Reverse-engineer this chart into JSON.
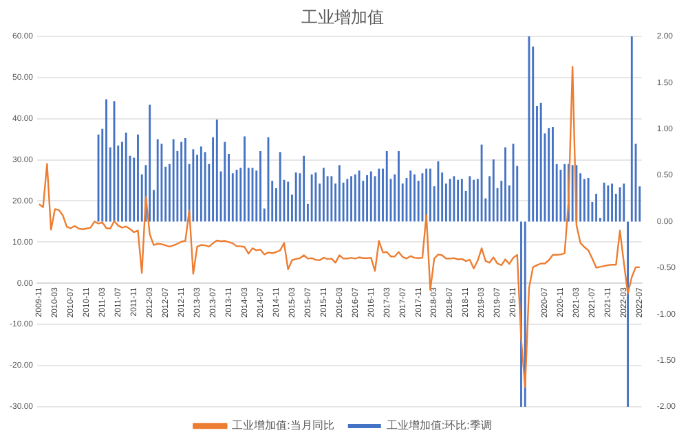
{
  "chart_data": {
    "type": "bar",
    "title": "工业增加值",
    "categories": [
      "2009-11",
      null,
      null,
      null,
      "2010-03",
      null,
      null,
      null,
      "2010-07",
      null,
      null,
      null,
      "2010-11",
      null,
      null,
      null,
      "2011-03",
      null,
      null,
      null,
      "2011-07",
      null,
      null,
      null,
      "2011-11",
      null,
      null,
      null,
      "2012-03",
      null,
      null,
      null,
      "2012-07",
      null,
      null,
      null,
      "2012-11",
      null,
      null,
      null,
      "2013-03",
      null,
      null,
      null,
      "2013-07",
      null,
      null,
      null,
      "2013-11",
      null,
      null,
      null,
      "2014-03",
      null,
      null,
      null,
      "2014-07",
      null,
      null,
      null,
      "2014-11",
      null,
      null,
      null,
      "2015-03",
      null,
      null,
      null,
      "2015-07",
      null,
      null,
      null,
      "2015-11",
      null,
      null,
      null,
      "2016-03",
      null,
      null,
      null,
      "2016-07",
      null,
      null,
      null,
      "2016-11",
      null,
      null,
      null,
      "2017-03",
      null,
      null,
      null,
      "2017-07",
      null,
      null,
      null,
      "2017-11",
      null,
      null,
      null,
      "2018-03",
      null,
      null,
      null,
      "2018-07",
      null,
      null,
      null,
      "2018-11",
      null,
      null,
      null,
      "2019-03",
      null,
      null,
      null,
      "2019-07",
      null,
      null,
      null,
      "2019-11",
      null,
      null,
      null,
      null,
      null,
      null,
      null,
      "2020-07",
      null,
      null,
      null,
      "2020-11",
      null,
      null,
      null,
      "2021-03",
      null,
      null,
      null,
      "2021-07",
      null,
      null,
      null,
      "2021-11",
      null,
      null,
      null,
      "2022-03",
      null,
      null,
      null,
      "2022-07"
    ],
    "series": [
      {
        "axis": "y2",
        "name": "工业增加值:环比:季调",
        "color": "#4472c4",
        "values": [
          null,
          null,
          null,
          null,
          null,
          null,
          null,
          null,
          null,
          null,
          null,
          null,
          null,
          null,
          null,
          0.94,
          1.0,
          1.32,
          0.8,
          1.3,
          0.82,
          0.86,
          0.96,
          0.71,
          0.69,
          0.94,
          0.51,
          0.61,
          1.26,
          0.34,
          0.89,
          0.84,
          0.59,
          0.62,
          0.89,
          0.76,
          0.86,
          0.9,
          0.62,
          0.78,
          0.72,
          0.81,
          0.75,
          0.62,
          0.91,
          1.1,
          0.54,
          0.86,
          0.73,
          0.52,
          0.56,
          0.58,
          0.92,
          0.58,
          0.58,
          0.55,
          0.76,
          0.14,
          0.91,
          0.44,
          0.36,
          0.75,
          0.45,
          0.43,
          0.29,
          0.53,
          0.52,
          0.71,
          0.19,
          0.51,
          0.53,
          0.41,
          0.58,
          0.49,
          0.49,
          0.41,
          0.61,
          0.42,
          0.46,
          0.49,
          0.51,
          0.55,
          0.44,
          0.5,
          0.54,
          0.49,
          0.57,
          0.57,
          0.76,
          0.46,
          0.51,
          0.76,
          0.41,
          0.47,
          0.55,
          0.51,
          0.44,
          0.52,
          0.57,
          0.57,
          0.38,
          0.65,
          0.53,
          0.41,
          0.46,
          0.49,
          0.45,
          0.46,
          0.33,
          0.49,
          0.45,
          0.46,
          0.83,
          0.25,
          0.49,
          0.67,
          0.36,
          0.44,
          0.8,
          0.39,
          0.84,
          0.6,
          -2.0,
          -2.0,
          2.0,
          1.89,
          1.25,
          1.28,
          0.95,
          1.01,
          1.02,
          0.62,
          0.56,
          0.62,
          0.62,
          0.61,
          0.61,
          0.52,
          0.46,
          0.47,
          0.21,
          0.3,
          0.04,
          0.42,
          0.39,
          0.41,
          0.3,
          0.37,
          0.41,
          -2.0,
          2.0,
          0.84,
          0.38
        ]
      },
      {
        "type": "line",
        "name": "工业增加值:当月同比",
        "color": "#ed7d31",
        "values": [
          19.2,
          18.5,
          29,
          13,
          18,
          17.8,
          16.5,
          13.7,
          13.4,
          13.9,
          13.3,
          13.1,
          13.3,
          13.5,
          15,
          14.5,
          14.8,
          13.4,
          13.3,
          15.1,
          14,
          13.5,
          13.8,
          13.2,
          12.4,
          12.8,
          2.5,
          21,
          11.9,
          9.3,
          9.6,
          9.5,
          9.2,
          8.9,
          9.2,
          9.6,
          10.1,
          10.3,
          17.7,
          2.3,
          8.9,
          9.3,
          9.2,
          8.9,
          9.7,
          10.4,
          10.2,
          10.3,
          10,
          9.7,
          9,
          9,
          8.8,
          7.2,
          8.5,
          8,
          8.2,
          7,
          7.5,
          7.3,
          7.6,
          8,
          9.8,
          3.4,
          5.6,
          5.9,
          6.1,
          6.8,
          6,
          6.1,
          5.7,
          5.6,
          6.2,
          5.9,
          6,
          5,
          6.8,
          6,
          6,
          6.2,
          6,
          6.3,
          6.1,
          6.1,
          6.2,
          3,
          10.3,
          7.5,
          7.6,
          6.5,
          6.5,
          7.6,
          6.4,
          6,
          6.6,
          6.2,
          6.1,
          6.2,
          16.5,
          -1.6,
          6,
          7,
          6.8,
          6,
          6,
          6.1,
          5.8,
          5.9,
          5.4,
          5.7,
          3.6,
          5.5,
          8.5,
          5.4,
          5,
          6.3,
          4.8,
          4.4,
          5.8,
          4.7,
          6.2,
          6.9,
          -13.5,
          -25.2,
          -1.1,
          3.9,
          4.4,
          4.8,
          4.8,
          5.6,
          6.9,
          6.9,
          7,
          7.3,
          20,
          52.6,
          14.1,
          9.8,
          8.8,
          8,
          6,
          3.8,
          4,
          4.2,
          4.4,
          4.5,
          4.5,
          12.8,
          5,
          -2.5,
          1.5,
          3.9,
          3.9
        ]
      }
    ],
    "ylim": [
      -30,
      60
    ],
    "yticks": [
      {
        "value": -30,
        "label": "-30.00"
      },
      {
        "value": -20,
        "label": "-20.00"
      },
      {
        "value": -10,
        "label": "-10.00"
      },
      {
        "value": 0,
        "label": "0.00"
      },
      {
        "value": 10,
        "label": "10.00"
      },
      {
        "value": 20,
        "label": "20.00"
      },
      {
        "value": 30,
        "label": "30.00"
      },
      {
        "value": 40,
        "label": "40.00"
      },
      {
        "value": 50,
        "label": "50.00"
      },
      {
        "value": 60,
        "label": "60.00"
      }
    ],
    "y2lim": [
      -2,
      2
    ],
    "y2ticks": [
      {
        "value": -2,
        "label": "-2.00"
      },
      {
        "value": -1.5,
        "label": "-1.50"
      },
      {
        "value": -1,
        "label": "-1.00"
      },
      {
        "value": -0.5,
        "label": "-0.50"
      },
      {
        "value": 0,
        "label": "0.00"
      },
      {
        "value": 0.5,
        "label": "0.50"
      },
      {
        "value": 1,
        "label": "1.00"
      },
      {
        "value": 1.5,
        "label": "1.50"
      },
      {
        "value": 2,
        "label": "2.00"
      }
    ],
    "grid": "y",
    "legend": "bottom",
    "marker": "none"
  }
}
